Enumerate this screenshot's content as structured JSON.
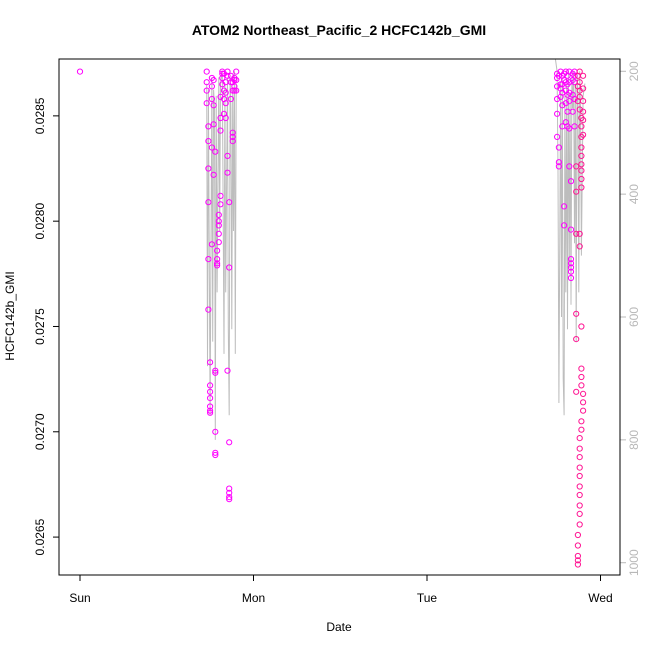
{
  "chart_data": {
    "type": "scatter",
    "title": "ATOM2 Northeast_Pacific_2 HCFC142b_GMI",
    "xlabel": "Date",
    "ylabel": "HCFC142b_GMI",
    "x_ticks": [
      "Sun",
      "Mon",
      "Tue",
      "Wed"
    ],
    "y_ticks": [
      "0.0265",
      "0.0270",
      "0.0275",
      "0.0280",
      "0.0285"
    ],
    "ylim": [
      0.02632,
      0.02877
    ],
    "right_axis": {
      "ticks": [
        "200",
        "400",
        "600",
        "800",
        "1000"
      ],
      "lim": [
        1020,
        180
      ]
    },
    "colors": {
      "points": "#ff00ff",
      "points_late": "#ff1493",
      "line": "#bdbdbd",
      "axis": "#000000",
      "right_axis": "#b8b8b8"
    },
    "series": [
      {
        "marker": "open-circle",
        "points": [
          [
            0.0,
            0.02871
          ],
          [
            0.73,
            0.02871
          ],
          [
            0.73,
            0.02866
          ],
          [
            0.73,
            0.02862
          ],
          [
            0.73,
            0.02856
          ],
          [
            0.74,
            0.02845
          ],
          [
            0.74,
            0.02838
          ],
          [
            0.74,
            0.02825
          ],
          [
            0.74,
            0.02809
          ],
          [
            0.74,
            0.02782
          ],
          [
            0.74,
            0.02758
          ],
          [
            0.75,
            0.02733
          ],
          [
            0.75,
            0.02722
          ],
          [
            0.75,
            0.02719
          ],
          [
            0.75,
            0.02716
          ],
          [
            0.75,
            0.02712
          ],
          [
            0.75,
            0.0271
          ],
          [
            0.75,
            0.02709
          ],
          [
            0.76,
            0.02868
          ],
          [
            0.76,
            0.02864
          ],
          [
            0.76,
            0.02858
          ],
          [
            0.76,
            0.02835
          ],
          [
            0.76,
            0.02789
          ],
          [
            0.77,
            0.02867
          ],
          [
            0.77,
            0.02855
          ],
          [
            0.77,
            0.02846
          ],
          [
            0.77,
            0.02822
          ],
          [
            0.78,
            0.02833
          ],
          [
            0.78,
            0.027
          ],
          [
            0.78,
            0.0269
          ],
          [
            0.78,
            0.02689
          ],
          [
            0.78,
            0.02729
          ],
          [
            0.78,
            0.02728
          ],
          [
            0.79,
            0.0278
          ],
          [
            0.79,
            0.02779
          ],
          [
            0.79,
            0.02782
          ],
          [
            0.79,
            0.02786
          ],
          [
            0.8,
            0.0279
          ],
          [
            0.8,
            0.02794
          ],
          [
            0.8,
            0.02798
          ],
          [
            0.8,
            0.028
          ],
          [
            0.8,
            0.02803
          ],
          [
            0.81,
            0.02808
          ],
          [
            0.81,
            0.02812
          ],
          [
            0.81,
            0.02859
          ],
          [
            0.81,
            0.02843
          ],
          [
            0.81,
            0.02849
          ],
          [
            0.82,
            0.02865
          ],
          [
            0.82,
            0.0287
          ],
          [
            0.82,
            0.02871
          ],
          [
            0.82,
            0.02868
          ],
          [
            0.83,
            0.0287
          ],
          [
            0.83,
            0.02858
          ],
          [
            0.83,
            0.02862
          ],
          [
            0.83,
            0.02851
          ],
          [
            0.84,
            0.02866
          ],
          [
            0.84,
            0.02861
          ],
          [
            0.84,
            0.02849
          ],
          [
            0.84,
            0.02856
          ],
          [
            0.85,
            0.02871
          ],
          [
            0.85,
            0.02869
          ],
          [
            0.85,
            0.02831
          ],
          [
            0.85,
            0.02823
          ],
          [
            0.85,
            0.02729
          ],
          [
            0.86,
            0.02695
          ],
          [
            0.86,
            0.02673
          ],
          [
            0.86,
            0.02671
          ],
          [
            0.86,
            0.02669
          ],
          [
            0.86,
            0.02668
          ],
          [
            0.86,
            0.02809
          ],
          [
            0.86,
            0.02778
          ],
          [
            0.87,
            0.02866
          ],
          [
            0.87,
            0.02869
          ],
          [
            0.87,
            0.02858
          ],
          [
            0.88,
            0.02862
          ],
          [
            0.88,
            0.02866
          ],
          [
            0.88,
            0.02838
          ],
          [
            0.88,
            0.0284
          ],
          [
            0.88,
            0.02842
          ],
          [
            0.89,
            0.02867
          ],
          [
            0.89,
            0.02862
          ],
          [
            0.89,
            0.02864
          ],
          [
            0.89,
            0.02868
          ],
          [
            0.9,
            0.02871
          ],
          [
            0.9,
            0.02867
          ],
          [
            0.9,
            0.02862
          ],
          [
            2.75,
            0.0287
          ],
          [
            2.75,
            0.02868
          ],
          [
            2.75,
            0.02864
          ],
          [
            2.75,
            0.02858
          ],
          [
            2.75,
            0.02851
          ],
          [
            2.75,
            0.0284
          ],
          [
            2.76,
            0.02835
          ],
          [
            2.76,
            0.02828
          ],
          [
            2.76,
            0.02826
          ],
          [
            2.76,
            0.02869
          ],
          [
            2.77,
            0.02865
          ],
          [
            2.77,
            0.02871
          ],
          [
            2.77,
            0.02863
          ],
          [
            2.77,
            0.02859
          ],
          [
            2.78,
            0.02869
          ],
          [
            2.78,
            0.02865
          ],
          [
            2.78,
            0.02861
          ],
          [
            2.78,
            0.02855
          ],
          [
            2.78,
            0.02845
          ],
          [
            2.79,
            0.02807
          ],
          [
            2.79,
            0.02798
          ],
          [
            2.79,
            0.02867
          ],
          [
            2.79,
            0.0287
          ],
          [
            2.8,
            0.02871
          ],
          [
            2.8,
            0.02866
          ],
          [
            2.8,
            0.02862
          ],
          [
            2.8,
            0.02856
          ],
          [
            2.8,
            0.02847
          ],
          [
            2.81,
            0.02869
          ],
          [
            2.81,
            0.02865
          ],
          [
            2.81,
            0.0286
          ],
          [
            2.81,
            0.02852
          ],
          [
            2.81,
            0.02845
          ],
          [
            2.82,
            0.02871
          ],
          [
            2.82,
            0.02866
          ],
          [
            2.82,
            0.02861
          ],
          [
            2.82,
            0.02857
          ],
          [
            2.82,
            0.02844
          ],
          [
            2.82,
            0.02826
          ],
          [
            2.83,
            0.02819
          ],
          [
            2.83,
            0.02796
          ],
          [
            2.83,
            0.02782
          ],
          [
            2.83,
            0.0278
          ],
          [
            2.83,
            0.02778
          ],
          [
            2.83,
            0.02776
          ],
          [
            2.83,
            0.02773
          ],
          [
            2.84,
            0.0287
          ],
          [
            2.84,
            0.02867
          ],
          [
            2.84,
            0.0286
          ],
          [
            2.84,
            0.02852
          ],
          [
            2.85,
            0.02871
          ],
          [
            2.85,
            0.02869
          ],
          [
            2.85,
            0.02866
          ],
          [
            2.85,
            0.02858
          ],
          [
            2.85,
            0.02845
          ],
          [
            2.86,
            0.02826
          ],
          [
            2.86,
            0.02814
          ],
          [
            2.86,
            0.02794
          ],
          [
            2.86,
            0.02756
          ],
          [
            2.86,
            0.02744
          ],
          [
            2.86,
            0.02719
          ],
          [
            2.87,
            0.02869
          ],
          [
            2.87,
            0.02864
          ],
          [
            2.87,
            0.02857
          ],
          [
            2.88,
            0.02871
          ],
          [
            2.88,
            0.02866
          ],
          [
            2.88,
            0.02862
          ],
          [
            2.88,
            0.02859
          ],
          [
            2.88,
            0.02853
          ],
          [
            2.89,
            0.02849
          ],
          [
            2.89,
            0.02845
          ],
          [
            2.89,
            0.0284
          ],
          [
            2.89,
            0.02835
          ],
          [
            2.89,
            0.02831
          ],
          [
            2.89,
            0.02827
          ],
          [
            2.89,
            0.02824
          ],
          [
            2.89,
            0.0282
          ],
          [
            2.89,
            0.02816
          ],
          [
            2.9,
            0.02869
          ],
          [
            2.9,
            0.02863
          ],
          [
            2.9,
            0.02857
          ],
          [
            2.9,
            0.02852
          ],
          [
            2.9,
            0.02848
          ],
          [
            2.9,
            0.02841
          ],
          [
            2.88,
            0.02794
          ],
          [
            2.88,
            0.02788
          ],
          [
            2.89,
            0.0275
          ],
          [
            2.89,
            0.0273
          ],
          [
            2.89,
            0.02726
          ],
          [
            2.89,
            0.02722
          ],
          [
            2.9,
            0.02718
          ],
          [
            2.9,
            0.02714
          ],
          [
            2.9,
            0.0271
          ],
          [
            2.89,
            0.02705
          ],
          [
            2.89,
            0.02701
          ],
          [
            2.88,
            0.02697
          ],
          [
            2.88,
            0.02692
          ],
          [
            2.88,
            0.02688
          ],
          [
            2.88,
            0.02683
          ],
          [
            2.88,
            0.02679
          ],
          [
            2.88,
            0.02674
          ],
          [
            2.88,
            0.0267
          ],
          [
            2.88,
            0.02665
          ],
          [
            2.88,
            0.02661
          ],
          [
            2.88,
            0.02656
          ],
          [
            2.87,
            0.02651
          ],
          [
            2.87,
            0.02646
          ],
          [
            2.87,
            0.02641
          ],
          [
            2.87,
            0.02639
          ],
          [
            2.87,
            0.02637
          ]
        ]
      }
    ],
    "pressure_line": [
      [
        0.73,
        220
      ],
      [
        0.735,
        680
      ],
      [
        0.74,
        230
      ],
      [
        0.75,
        760
      ],
      [
        0.76,
        210
      ],
      [
        0.765,
        640
      ],
      [
        0.77,
        230
      ],
      [
        0.775,
        260
      ],
      [
        0.78,
        800
      ],
      [
        0.785,
        240
      ],
      [
        0.79,
        560
      ],
      [
        0.8,
        210
      ],
      [
        0.805,
        460
      ],
      [
        0.81,
        220
      ],
      [
        0.82,
        200
      ],
      [
        0.83,
        660
      ],
      [
        0.835,
        220
      ],
      [
        0.84,
        560
      ],
      [
        0.85,
        210
      ],
      [
        0.855,
        620
      ],
      [
        0.86,
        760
      ],
      [
        0.865,
        210
      ],
      [
        0.87,
        260
      ],
      [
        0.875,
        620
      ],
      [
        0.88,
        230
      ],
      [
        0.885,
        460
      ],
      [
        0.89,
        200
      ],
      [
        0.895,
        660
      ],
      [
        0.9,
        220
      ],
      [
        2.74,
        180
      ],
      [
        2.75,
        200
      ],
      [
        2.755,
        360
      ],
      [
        2.76,
        740
      ],
      [
        2.77,
        220
      ],
      [
        2.775,
        600
      ],
      [
        2.78,
        210
      ],
      [
        2.785,
        700
      ],
      [
        2.79,
        760
      ],
      [
        2.795,
        240
      ],
      [
        2.8,
        560
      ],
      [
        2.805,
        220
      ],
      [
        2.81,
        620
      ],
      [
        2.815,
        200
      ],
      [
        2.82,
        520
      ],
      [
        2.825,
        240
      ],
      [
        2.83,
        580
      ],
      [
        2.835,
        210
      ],
      [
        2.84,
        260
      ],
      [
        2.845,
        200
      ],
      [
        2.85,
        480
      ],
      [
        2.855,
        220
      ],
      [
        2.86,
        640
      ],
      [
        2.865,
        200
      ],
      [
        2.87,
        240
      ],
      [
        2.875,
        560
      ],
      [
        2.88,
        200
      ],
      [
        2.885,
        260
      ],
      [
        2.89,
        500
      ],
      [
        2.9,
        240
      ],
      [
        2.91,
        220
      ]
    ]
  }
}
